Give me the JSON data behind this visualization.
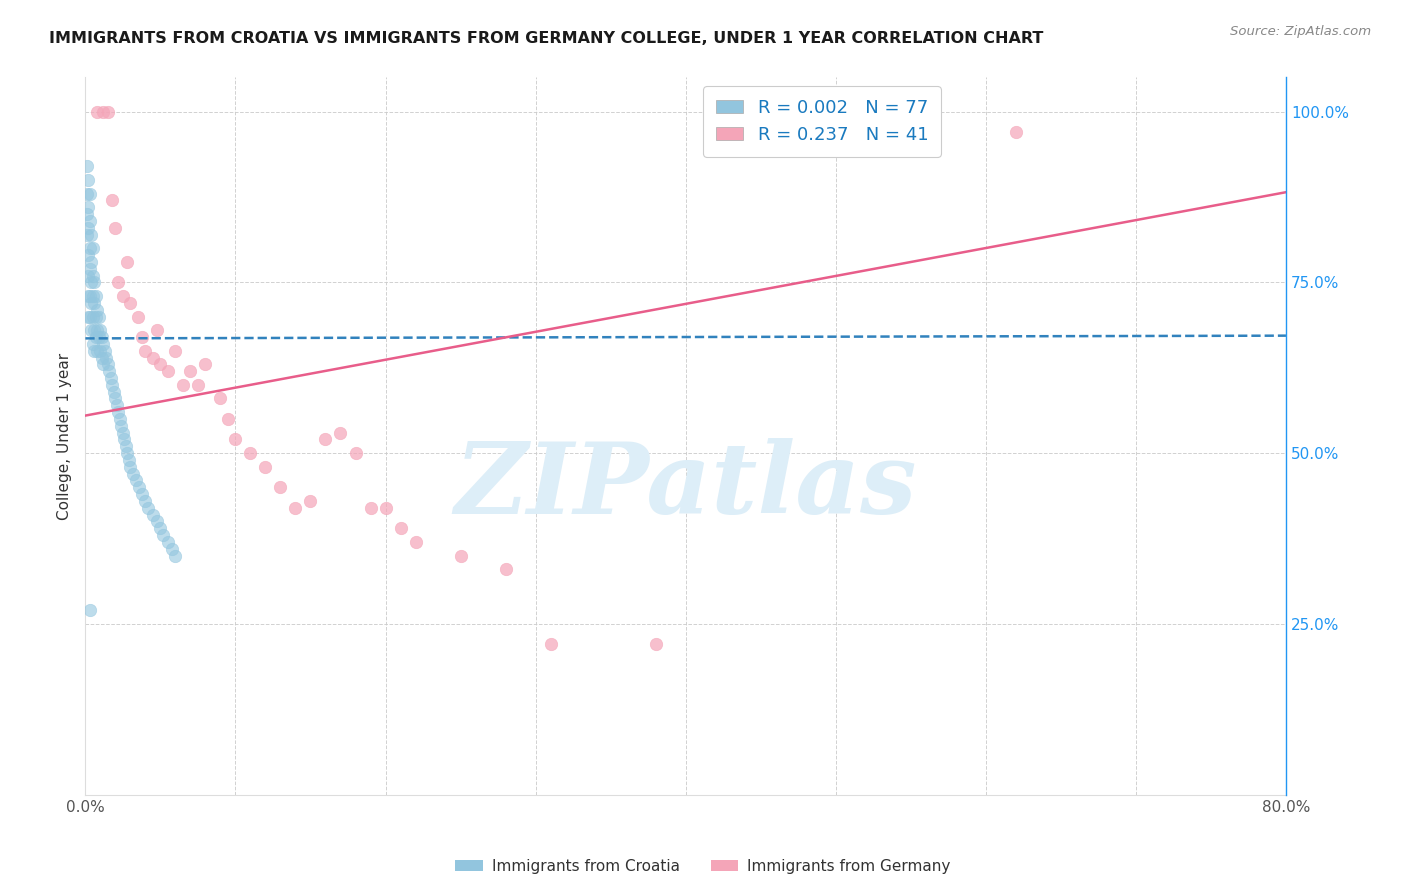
{
  "title": "IMMIGRANTS FROM CROATIA VS IMMIGRANTS FROM GERMANY COLLEGE, UNDER 1 YEAR CORRELATION CHART",
  "source": "Source: ZipAtlas.com",
  "ylabel": "College, Under 1 year",
  "x_min": 0.0,
  "x_max": 0.8,
  "y_min": 0.0,
  "y_max": 1.05,
  "x_tick_positions": [
    0.0,
    0.1,
    0.2,
    0.3,
    0.4,
    0.5,
    0.6,
    0.7,
    0.8
  ],
  "x_tick_labels": [
    "0.0%",
    "",
    "",
    "",
    "",
    "",
    "",
    "",
    "80.0%"
  ],
  "y_tick_positions": [
    0.0,
    0.25,
    0.5,
    0.75,
    1.0
  ],
  "y_tick_labels_right": [
    "",
    "25.0%",
    "50.0%",
    "75.0%",
    "100.0%"
  ],
  "legend_label_croatia": "R = 0.002   N = 77",
  "legend_label_germany": "R = 0.237   N = 41",
  "color_croatia": "#92c5de",
  "color_germany": "#f4a5b8",
  "trendline_croatia_color": "#3182bd",
  "trendline_germany_color": "#e85d8a",
  "background_color": "#ffffff",
  "watermark_text": "ZIPatlas",
  "watermark_color": "#ddeef8",
  "croatia_trendline_x": [
    0.0,
    0.8
  ],
  "croatia_trendline_y": [
    0.668,
    0.672
  ],
  "germany_trendline_x": [
    0.0,
    0.8
  ],
  "germany_trendline_y": [
    0.555,
    0.882
  ],
  "croatia_x": [
    0.001,
    0.001,
    0.001,
    0.001,
    0.002,
    0.002,
    0.002,
    0.002,
    0.002,
    0.002,
    0.002,
    0.003,
    0.003,
    0.003,
    0.003,
    0.003,
    0.003,
    0.004,
    0.004,
    0.004,
    0.004,
    0.004,
    0.005,
    0.005,
    0.005,
    0.005,
    0.005,
    0.006,
    0.006,
    0.006,
    0.006,
    0.007,
    0.007,
    0.007,
    0.008,
    0.008,
    0.008,
    0.009,
    0.009,
    0.01,
    0.01,
    0.011,
    0.011,
    0.012,
    0.012,
    0.013,
    0.014,
    0.015,
    0.016,
    0.017,
    0.018,
    0.019,
    0.02,
    0.021,
    0.022,
    0.023,
    0.024,
    0.025,
    0.026,
    0.027,
    0.028,
    0.029,
    0.03,
    0.032,
    0.034,
    0.036,
    0.038,
    0.04,
    0.042,
    0.045,
    0.048,
    0.05,
    0.052,
    0.055,
    0.058,
    0.06,
    0.003
  ],
  "croatia_y": [
    0.92,
    0.88,
    0.85,
    0.82,
    0.9,
    0.86,
    0.83,
    0.79,
    0.76,
    0.73,
    0.7,
    0.88,
    0.84,
    0.8,
    0.77,
    0.73,
    0.7,
    0.82,
    0.78,
    0.75,
    0.72,
    0.68,
    0.8,
    0.76,
    0.73,
    0.7,
    0.66,
    0.75,
    0.72,
    0.68,
    0.65,
    0.73,
    0.7,
    0.67,
    0.71,
    0.68,
    0.65,
    0.7,
    0.67,
    0.68,
    0.65,
    0.67,
    0.64,
    0.66,
    0.63,
    0.65,
    0.64,
    0.63,
    0.62,
    0.61,
    0.6,
    0.59,
    0.58,
    0.57,
    0.56,
    0.55,
    0.54,
    0.53,
    0.52,
    0.51,
    0.5,
    0.49,
    0.48,
    0.47,
    0.46,
    0.45,
    0.44,
    0.43,
    0.42,
    0.41,
    0.4,
    0.39,
    0.38,
    0.37,
    0.36,
    0.35,
    0.27
  ],
  "germany_x": [
    0.008,
    0.012,
    0.015,
    0.018,
    0.02,
    0.022,
    0.025,
    0.028,
    0.03,
    0.035,
    0.038,
    0.04,
    0.045,
    0.048,
    0.05,
    0.055,
    0.06,
    0.065,
    0.07,
    0.075,
    0.08,
    0.09,
    0.095,
    0.1,
    0.11,
    0.12,
    0.13,
    0.14,
    0.15,
    0.16,
    0.17,
    0.18,
    0.19,
    0.2,
    0.21,
    0.22,
    0.25,
    0.28,
    0.31,
    0.38,
    0.62
  ],
  "germany_y": [
    1.0,
    1.0,
    1.0,
    0.87,
    0.83,
    0.75,
    0.73,
    0.78,
    0.72,
    0.7,
    0.67,
    0.65,
    0.64,
    0.68,
    0.63,
    0.62,
    0.65,
    0.6,
    0.62,
    0.6,
    0.63,
    0.58,
    0.55,
    0.52,
    0.5,
    0.48,
    0.45,
    0.42,
    0.43,
    0.52,
    0.53,
    0.5,
    0.42,
    0.42,
    0.39,
    0.37,
    0.35,
    0.33,
    0.22,
    0.22,
    0.97
  ]
}
